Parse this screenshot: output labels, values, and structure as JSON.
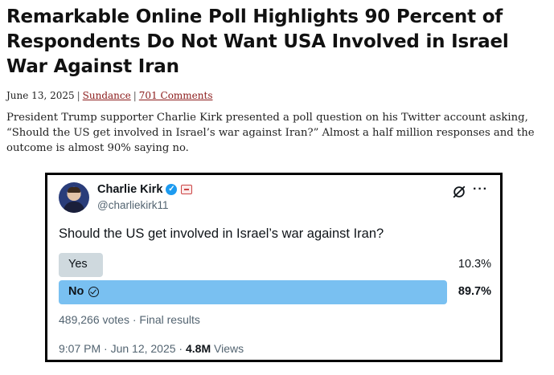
{
  "article": {
    "headline": "Remarkable Online Poll Highlights 90 Percent of Respondents Do Not Want USA Involved in Israel War Against Iran",
    "date": "June 13, 2025",
    "author": "Sundance",
    "comments": "701 Comments",
    "body": "President Trump supporter Charlie Kirk presented a poll question on his Twitter account asking, “Should the US get involved in Israel’s war against Iran?”  Almost a half million responses and the outcome is almost 90% saying no."
  },
  "tweet": {
    "display_name": "Charlie Kirk",
    "handle": "@charliekirk11",
    "verified_icon": "verified-badge-icon",
    "question": "Should the US get involved in Israel’s war against Iran?",
    "options": [
      {
        "label": "Yes",
        "percent": "10.3%",
        "fraction": 0.103,
        "selected": false
      },
      {
        "label": "No",
        "percent": "89.7%",
        "fraction": 0.897,
        "selected": true
      }
    ],
    "votes": "489,266 votes · Final results",
    "time": "9:07 PM · Jun 12, 2025 · ",
    "views_count": "4.8M",
    "views_label": " Views",
    "colors": {
      "winner_bar": "#79c0f1",
      "other_bar": "#cfd9de",
      "secondary_text": "#536471"
    }
  }
}
